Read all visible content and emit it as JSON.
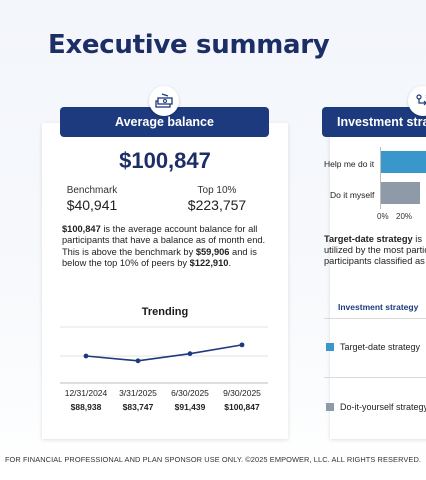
{
  "page": {
    "title": "Executive summary"
  },
  "left_card": {
    "header": "Average balance",
    "icon": "money-stack-icon",
    "value": "$100,847",
    "benchmark": {
      "label": "Benchmark",
      "value": "$40,941"
    },
    "top10": {
      "label": "Top 10%",
      "value": "$223,757"
    },
    "description": {
      "value_bold": "$100,847",
      "text1": " is the average account balance for all participants that have a balance as of month end. This is above the benchmark by ",
      "bench_diff": "$59,906",
      "text2": " and is below the top 10% of peers by ",
      "top_diff": "$122,910",
      "text3": "."
    },
    "trending_title": "Trending",
    "chart_data": {
      "type": "line",
      "title": "Trending",
      "categories": [
        "12/31/2024",
        "3/31/2025",
        "6/30/2025",
        "9/30/2025"
      ],
      "series": [
        {
          "values": [
            88938,
            83747,
            91439,
            100847
          ]
        }
      ],
      "value_labels": [
        "$88,938",
        "$83,747",
        "$91,439",
        "$100,847"
      ],
      "color": "#1c3a7d",
      "grid": true
    }
  },
  "right_card": {
    "header": "Investment stra",
    "icon": "strategy-icon",
    "bars": [
      {
        "label": "Help me do it",
        "color": "#3a97cc"
      },
      {
        "label": "Do it myself",
        "color": "#8e9aa8"
      }
    ],
    "axis": [
      "0%",
      "20%"
    ],
    "text_line1_bold": "Target-date strategy",
    "text_line1": " is",
    "text_line2": "utilized by the most partic",
    "text_line3": "participants classified as",
    "table_header": "Investment strategy",
    "legend": [
      {
        "label": "Target-date strategy",
        "color": "#3a97cc"
      },
      {
        "label": "Do-it-yourself strategy",
        "color": "#8e9aa8"
      }
    ]
  },
  "footer": "FOR FINANCIAL PROFESSIONAL AND PLAN SPONSOR USE ONLY. ©2025 EMPOWER, LLC. ALL RIGHTS RESERVED."
}
